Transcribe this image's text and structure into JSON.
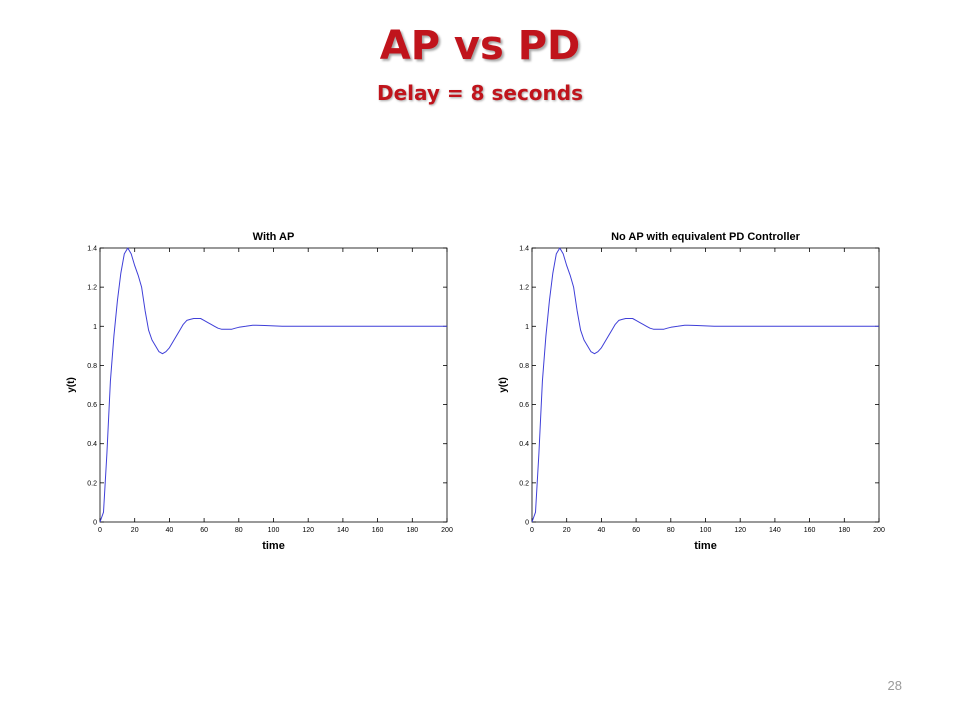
{
  "slide": {
    "title": "AP vs PD",
    "subtitle": "Delay = 8 seconds",
    "page_number": "28",
    "title_color": "#c0141c"
  },
  "chart_data": [
    {
      "type": "line",
      "title": "With AP",
      "xlabel": "time",
      "ylabel": "y(t)",
      "xlim": [
        0,
        200
      ],
      "ylim": [
        0,
        1.4
      ],
      "xticks": [
        0,
        20,
        40,
        60,
        80,
        100,
        120,
        140,
        160,
        180,
        200
      ],
      "yticks": [
        0,
        0.2,
        0.4,
        0.6,
        0.8,
        1,
        1.2,
        1.4
      ],
      "grid": false,
      "line_color": "#3f3fd8",
      "series": [
        {
          "x": [
            0,
            2,
            4,
            6,
            8,
            10,
            12,
            14,
            16,
            18,
            20,
            22,
            24,
            26,
            28,
            30,
            32,
            34,
            36,
            38,
            40,
            42,
            44,
            46,
            48,
            50,
            52,
            54,
            56,
            58,
            60,
            62,
            64,
            66,
            68,
            70,
            72,
            74,
            76,
            78,
            80,
            82,
            84,
            86,
            88,
            90,
            95,
            100,
            105,
            110,
            120,
            140,
            160,
            180,
            200
          ],
          "y": [
            0,
            0.05,
            0.35,
            0.72,
            0.95,
            1.13,
            1.27,
            1.37,
            1.4,
            1.37,
            1.31,
            1.26,
            1.2,
            1.08,
            0.98,
            0.93,
            0.9,
            0.87,
            0.86,
            0.87,
            0.89,
            0.92,
            0.95,
            0.98,
            1.01,
            1.03,
            1.035,
            1.04,
            1.04,
            1.04,
            1.03,
            1.02,
            1.01,
            1.0,
            0.99,
            0.985,
            0.985,
            0.985,
            0.985,
            0.99,
            0.995,
            0.998,
            1.0,
            1.003,
            1.005,
            1.005,
            1.004,
            1.002,
            1.0,
            1.0,
            1.0,
            1.0,
            1.0,
            1.0,
            1.0
          ]
        }
      ]
    },
    {
      "type": "line",
      "title": "No AP with equivalent PD Controller",
      "xlabel": "time",
      "ylabel": "y(t)",
      "xlim": [
        0,
        200
      ],
      "ylim": [
        0,
        1.4
      ],
      "xticks": [
        0,
        20,
        40,
        60,
        80,
        100,
        120,
        140,
        160,
        180,
        200
      ],
      "yticks": [
        0,
        0.2,
        0.4,
        0.6,
        0.8,
        1,
        1.2,
        1.4
      ],
      "grid": false,
      "line_color": "#3f3fd8",
      "series": [
        {
          "x": [
            0,
            2,
            4,
            6,
            8,
            10,
            12,
            14,
            16,
            18,
            20,
            22,
            24,
            26,
            28,
            30,
            32,
            34,
            36,
            38,
            40,
            42,
            44,
            46,
            48,
            50,
            52,
            54,
            56,
            58,
            60,
            62,
            64,
            66,
            68,
            70,
            72,
            74,
            76,
            78,
            80,
            82,
            84,
            86,
            88,
            90,
            95,
            100,
            105,
            110,
            120,
            140,
            160,
            180,
            200
          ],
          "y": [
            0,
            0.05,
            0.35,
            0.72,
            0.95,
            1.13,
            1.27,
            1.37,
            1.4,
            1.37,
            1.31,
            1.26,
            1.2,
            1.08,
            0.98,
            0.93,
            0.9,
            0.87,
            0.86,
            0.87,
            0.89,
            0.92,
            0.95,
            0.98,
            1.01,
            1.03,
            1.035,
            1.04,
            1.04,
            1.04,
            1.03,
            1.02,
            1.01,
            1.0,
            0.99,
            0.985,
            0.985,
            0.985,
            0.985,
            0.99,
            0.995,
            0.998,
            1.0,
            1.003,
            1.005,
            1.005,
            1.004,
            1.002,
            1.0,
            1.0,
            1.0,
            1.0,
            1.0,
            1.0,
            1.0
          ]
        }
      ]
    }
  ]
}
